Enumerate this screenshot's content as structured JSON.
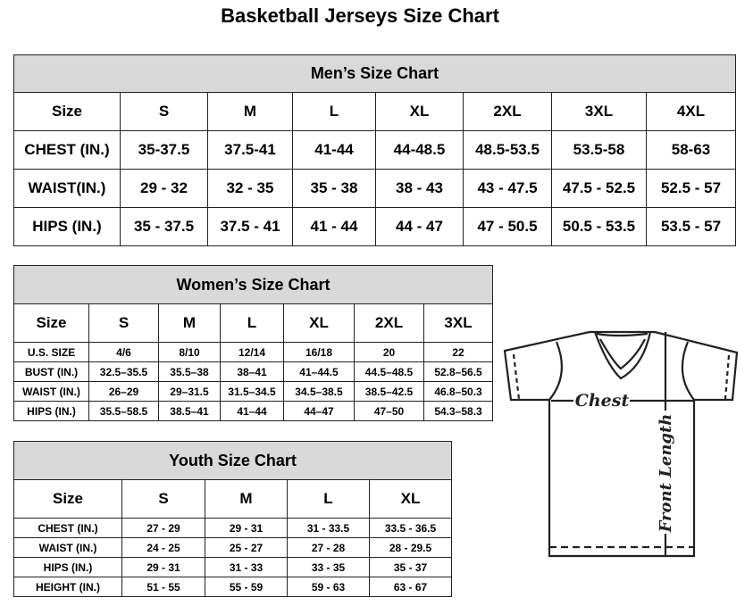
{
  "title": "Basketball Jerseys Size Chart",
  "men": {
    "heading": "Men’s Size Chart",
    "sizes": [
      "Size",
      "S",
      "M",
      "L",
      "XL",
      "2XL",
      "3XL",
      "4XL"
    ],
    "rows": [
      [
        "CHEST (IN.)",
        "35-37.5",
        "37.5-41",
        "41-44",
        "44-48.5",
        "48.5-53.5",
        "53.5-58",
        "58-63"
      ],
      [
        "WAIST(IN.)",
        "29 - 32",
        "32 - 35",
        "35 - 38",
        "38 - 43",
        "43 - 47.5",
        "47.5 - 52.5",
        "52.5 - 57"
      ],
      [
        "HIPS (IN.)",
        "35 - 37.5",
        "37.5 - 41",
        "41 - 44",
        "44 - 47",
        "47 - 50.5",
        "50.5 - 53.5",
        "53.5 - 57"
      ]
    ]
  },
  "women": {
    "heading": "Women’s Size Chart",
    "sizes": [
      "Size",
      "S",
      "M",
      "L",
      "XL",
      "2XL",
      "3XL"
    ],
    "rows": [
      [
        "U.S. SIZE",
        "4/6",
        "8/10",
        "12/14",
        "16/18",
        "20",
        "22"
      ],
      [
        "BUST (IN.)",
        "32.5–35.5",
        "35.5–38",
        "38–41",
        "41–44.5",
        "44.5–48.5",
        "52.8–56.5"
      ],
      [
        "WAIST (IN.)",
        "26–29",
        "29–31.5",
        "31.5–34.5",
        "34.5–38.5",
        "38.5–42.5",
        "46.8–50.3"
      ],
      [
        "HIPS (IN.)",
        "35.5–58.5",
        "38.5–41",
        "41–44",
        "44–47",
        "47–50",
        "54.3–58.3"
      ]
    ]
  },
  "youth": {
    "heading": "Youth Size Chart",
    "sizes": [
      "Size",
      "S",
      "M",
      "L",
      "XL"
    ],
    "rows": [
      [
        "CHEST (IN.)",
        "27 - 29",
        "29 - 31",
        "31 - 33.5",
        "33.5 - 36.5"
      ],
      [
        "WAIST (IN.)",
        "24 - 25",
        "25 - 27",
        "27 - 28",
        "28 - 29.5"
      ],
      [
        "HIPS (IN.)",
        "29 - 31",
        "31 - 33",
        "33 - 35",
        "35 - 37"
      ],
      [
        "HEIGHT (IN.)",
        "51 - 55",
        "55 - 59",
        "59 - 63",
        "63 - 67"
      ]
    ]
  },
  "diagram": {
    "chest_label": "Chest",
    "length_label": "Front Length"
  },
  "colors": {
    "header_bg": "#d9d9d9",
    "line": "#231f20"
  }
}
